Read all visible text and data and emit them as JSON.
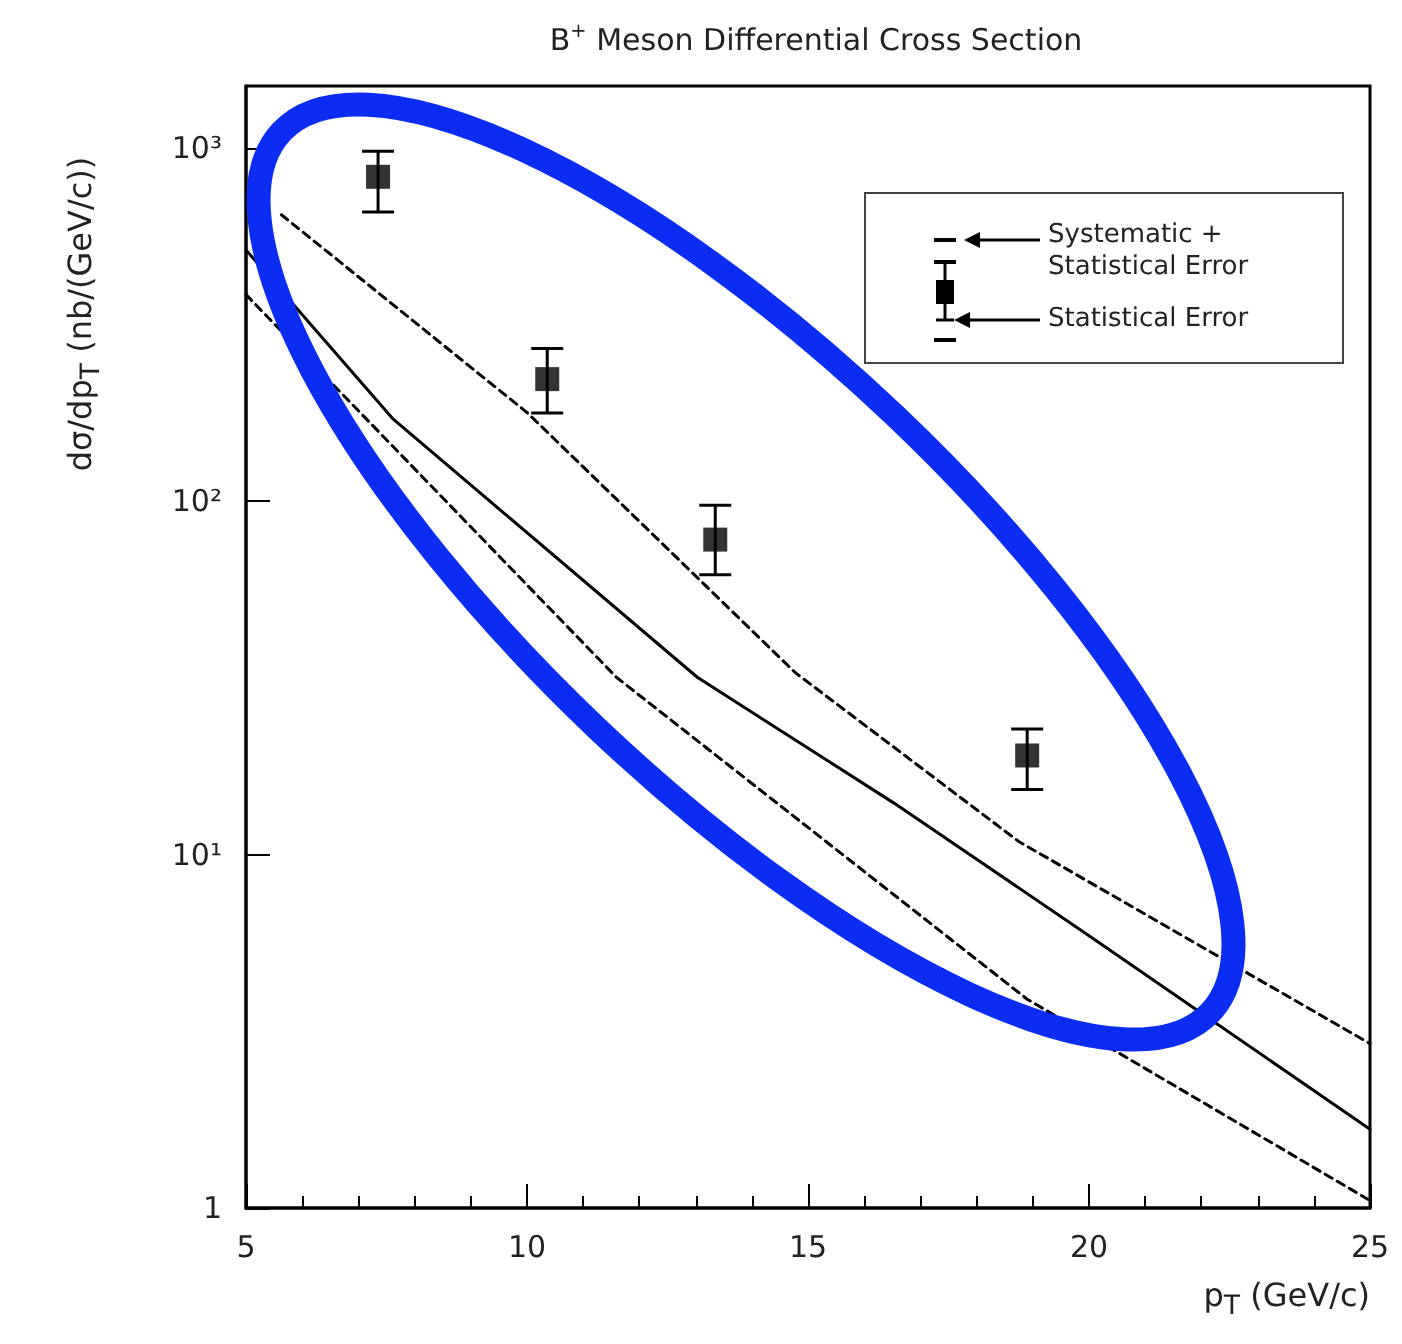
{
  "chart_data": {
    "type": "scatter",
    "title": "B$^{+}$ Meson Differential Cross Section",
    "xlabel": "p$_{T}$ (GeV/c)",
    "ylabel": "dσ/dp$_{T}$ (nb/(GeV/c))",
    "log": "y",
    "grid": false,
    "xlim": [
      5,
      25
    ],
    "xticks": [
      5,
      10,
      15,
      20,
      25
    ],
    "ylim": [
      1,
      1500
    ],
    "yticks": [
      1,
      {
        "value": 10,
        "label": "10¹"
      },
      {
        "value": 100,
        "label": "10²"
      },
      {
        "value": 1000,
        "label": "10³"
      }
    ],
    "annotations": [
      "Systematic + Statistical Error",
      "Statistical Error"
    ],
    "series": [
      {
        "color": "#000000",
        "marker": "square",
        "x": [
          7.35,
          10.36,
          13.35,
          18.9
        ],
        "values": [
          830,
          222,
          78,
          19.1
        ],
        "errors": [
          [
            660,
            980
          ],
          [
            178,
            271
          ],
          [
            62,
            97.5
          ],
          [
            15.3,
            22.7
          ]
        ]
      },
      {
        "type": "line",
        "color": "#000000",
        "marker": "none",
        "line_style": "solid",
        "x": [
          5,
          7.62,
          13.03,
          16.53,
          20.0,
          25
        ],
        "values": [
          515,
          171,
          31.8,
          14,
          5.9,
          1.67
        ]
      },
      {
        "type": "line",
        "color": "#000000",
        "marker": "none",
        "line_style": "dashed",
        "x": [
          5.63,
          10.01,
          14.78,
          18.75,
          25
        ],
        "values": [
          648,
          178,
          32.7,
          10.9,
          2.92
        ]
      },
      {
        "type": "line",
        "color": "#000000",
        "marker": "none",
        "line_style": "dashed",
        "x": [
          5,
          11.59,
          18.9,
          25
        ],
        "values": [
          385,
          31.8,
          3.9,
          1.05
        ]
      }
    ]
  }
}
